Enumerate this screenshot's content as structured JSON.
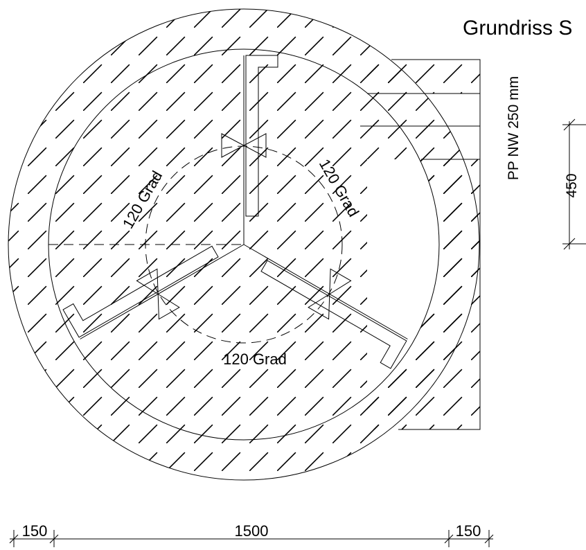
{
  "title": "Grundriss S",
  "pipe_label": "PP NW 250 mm",
  "angle_labels": [
    "120 Grad",
    "120 Grad",
    "120 Grad"
  ],
  "dimensions": {
    "right": "450",
    "bottom": [
      "150",
      "1500",
      "150"
    ]
  }
}
